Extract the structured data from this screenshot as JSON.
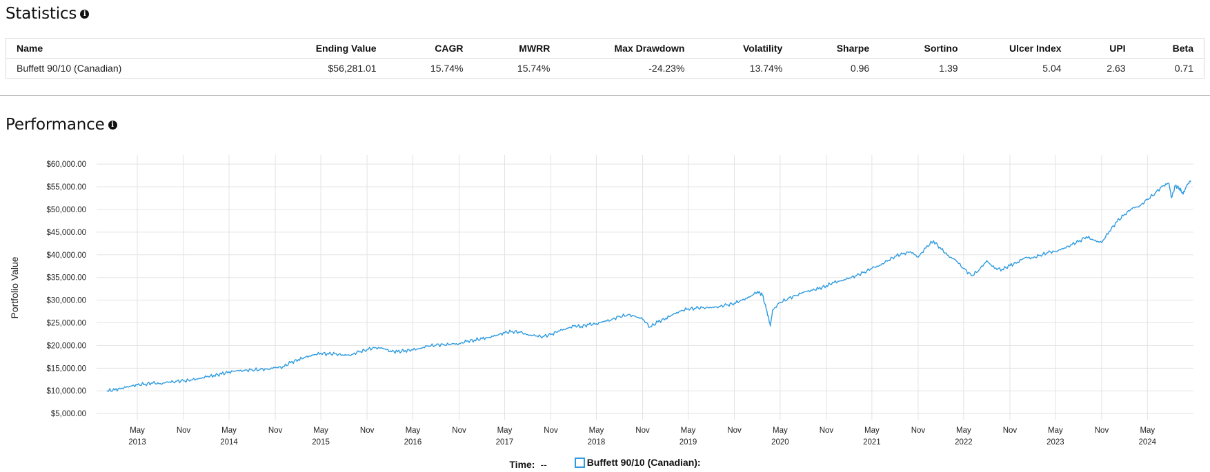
{
  "statistics": {
    "title": "Statistics",
    "columns": [
      "Name",
      "Ending Value",
      "CAGR",
      "MWRR",
      "Max Drawdown",
      "Volatility",
      "Sharpe",
      "Sortino",
      "Ulcer Index",
      "UPI",
      "Beta"
    ],
    "rows": [
      [
        "Buffett 90/10 (Canadian)",
        "$56,281.01",
        "15.74%",
        "15.74%",
        "-24.23%",
        "13.74%",
        "0.96",
        "1.39",
        "5.04",
        "2.63",
        "0.71"
      ]
    ]
  },
  "performance": {
    "title": "Performance",
    "legend": {
      "time_label": "Time:",
      "time_value": "--",
      "series_label": "Buffett 90/10 (Canadian):"
    }
  },
  "colors": {
    "line": "#2e9be0",
    "grid": "#e3e3e3",
    "text": "#212121"
  },
  "icons": [
    "info-icon",
    "info-icon"
  ],
  "chart_data": {
    "type": "line",
    "title": "",
    "xlabel": "",
    "ylabel": "Portfolio Value",
    "ylim": [
      3500,
      62000
    ],
    "xlim": [
      "2012-11-20",
      "2024-10-31"
    ],
    "grid": true,
    "y_ticks": [
      5000,
      10000,
      15000,
      20000,
      25000,
      30000,
      35000,
      40000,
      45000,
      50000,
      55000,
      60000
    ],
    "y_tick_labels": [
      "$5,000.00",
      "$10,000.00",
      "$15,000.00",
      "$20,000.00",
      "$25,000.00",
      "$30,000.00",
      "$35,000.00",
      "$40,000.00",
      "$45,000.00",
      "$50,000.00",
      "$55,000.00",
      "$60,000.00"
    ],
    "x_ticks": [
      {
        "date": "2013-05-01",
        "label": "May",
        "year": "2013"
      },
      {
        "date": "2013-11-01",
        "label": "Nov",
        "year": ""
      },
      {
        "date": "2014-05-01",
        "label": "May",
        "year": "2014"
      },
      {
        "date": "2014-11-01",
        "label": "Nov",
        "year": ""
      },
      {
        "date": "2015-05-01",
        "label": "May",
        "year": "2015"
      },
      {
        "date": "2015-11-01",
        "label": "Nov",
        "year": ""
      },
      {
        "date": "2016-05-01",
        "label": "May",
        "year": "2016"
      },
      {
        "date": "2016-11-01",
        "label": "Nov",
        "year": ""
      },
      {
        "date": "2017-05-01",
        "label": "May",
        "year": "2017"
      },
      {
        "date": "2017-11-01",
        "label": "Nov",
        "year": ""
      },
      {
        "date": "2018-05-01",
        "label": "May",
        "year": "2018"
      },
      {
        "date": "2018-11-01",
        "label": "Nov",
        "year": ""
      },
      {
        "date": "2019-05-01",
        "label": "May",
        "year": "2019"
      },
      {
        "date": "2019-11-01",
        "label": "Nov",
        "year": ""
      },
      {
        "date": "2020-05-01",
        "label": "May",
        "year": "2020"
      },
      {
        "date": "2020-11-01",
        "label": "Nov",
        "year": ""
      },
      {
        "date": "2021-05-01",
        "label": "May",
        "year": "2021"
      },
      {
        "date": "2021-11-01",
        "label": "Nov",
        "year": ""
      },
      {
        "date": "2022-05-01",
        "label": "May",
        "year": "2022"
      },
      {
        "date": "2022-11-01",
        "label": "Nov",
        "year": ""
      },
      {
        "date": "2023-05-01",
        "label": "May",
        "year": "2023"
      },
      {
        "date": "2023-11-01",
        "label": "Nov",
        "year": ""
      },
      {
        "date": "2024-05-01",
        "label": "May",
        "year": "2024"
      }
    ],
    "series": [
      {
        "name": "Buffett 90/10 (Canadian)",
        "color": "#2e9be0",
        "points": [
          [
            "2013-01-01",
            10000
          ],
          [
            "2013-02-01",
            10200
          ],
          [
            "2013-03-01",
            10600
          ],
          [
            "2013-04-01",
            11000
          ],
          [
            "2013-05-01",
            11300
          ],
          [
            "2013-06-01",
            11500
          ],
          [
            "2013-07-01",
            11700
          ],
          [
            "2013-08-01",
            11600
          ],
          [
            "2013-09-01",
            11900
          ],
          [
            "2013-10-01",
            12100
          ],
          [
            "2013-11-01",
            12200
          ],
          [
            "2013-12-01",
            12400
          ],
          [
            "2014-01-01",
            12700
          ],
          [
            "2014-02-01",
            13100
          ],
          [
            "2014-03-01",
            13400
          ],
          [
            "2014-04-01",
            13700
          ],
          [
            "2014-05-01",
            14200
          ],
          [
            "2014-06-01",
            14400
          ],
          [
            "2014-07-01",
            14500
          ],
          [
            "2014-08-01",
            14600
          ],
          [
            "2014-09-01",
            14700
          ],
          [
            "2014-10-01",
            14800
          ],
          [
            "2014-11-01",
            15100
          ],
          [
            "2014-12-01",
            15300
          ],
          [
            "2015-01-01",
            16200
          ],
          [
            "2015-02-01",
            16900
          ],
          [
            "2015-03-01",
            17400
          ],
          [
            "2015-04-01",
            17900
          ],
          [
            "2015-05-01",
            18300
          ],
          [
            "2015-06-01",
            18100
          ],
          [
            "2015-07-01",
            18200
          ],
          [
            "2015-08-01",
            17800
          ],
          [
            "2015-09-01",
            18000
          ],
          [
            "2015-10-01",
            18600
          ],
          [
            "2015-11-01",
            19100
          ],
          [
            "2015-12-01",
            19500
          ],
          [
            "2016-01-01",
            19400
          ],
          [
            "2016-02-01",
            18800
          ],
          [
            "2016-03-01",
            18600
          ],
          [
            "2016-04-01",
            18900
          ],
          [
            "2016-05-01",
            19000
          ],
          [
            "2016-06-01",
            19400
          ],
          [
            "2016-07-01",
            19900
          ],
          [
            "2016-08-01",
            20100
          ],
          [
            "2016-09-01",
            20200
          ],
          [
            "2016-10-01",
            20300
          ],
          [
            "2016-11-01",
            20400
          ],
          [
            "2016-12-01",
            20900
          ],
          [
            "2017-01-01",
            21200
          ],
          [
            "2017-02-01",
            21500
          ],
          [
            "2017-03-01",
            21800
          ],
          [
            "2017-04-01",
            22300
          ],
          [
            "2017-05-01",
            22800
          ],
          [
            "2017-06-01",
            23100
          ],
          [
            "2017-07-01",
            22900
          ],
          [
            "2017-08-01",
            22400
          ],
          [
            "2017-09-01",
            22100
          ],
          [
            "2017-10-01",
            22000
          ],
          [
            "2017-11-01",
            22400
          ],
          [
            "2017-12-01",
            23200
          ],
          [
            "2018-01-01",
            23700
          ],
          [
            "2018-02-01",
            24300
          ],
          [
            "2018-03-01",
            24200
          ],
          [
            "2018-04-01",
            24600
          ],
          [
            "2018-05-01",
            24800
          ],
          [
            "2018-06-01",
            25300
          ],
          [
            "2018-07-01",
            25700
          ],
          [
            "2018-08-01",
            26400
          ],
          [
            "2018-09-01",
            26700
          ],
          [
            "2018-10-01",
            26500
          ],
          [
            "2018-11-01",
            25800
          ],
          [
            "2018-12-01",
            24100
          ],
          [
            "2019-01-01",
            25200
          ],
          [
            "2019-02-01",
            26000
          ],
          [
            "2019-03-01",
            26800
          ],
          [
            "2019-04-01",
            27600
          ],
          [
            "2019-05-01",
            28100
          ],
          [
            "2019-06-01",
            28200
          ],
          [
            "2019-07-01",
            28400
          ],
          [
            "2019-08-01",
            28300
          ],
          [
            "2019-09-01",
            28600
          ],
          [
            "2019-10-01",
            28900
          ],
          [
            "2019-11-01",
            29300
          ],
          [
            "2019-12-01",
            30000
          ],
          [
            "2020-01-01",
            30700
          ],
          [
            "2020-02-01",
            31900
          ],
          [
            "2020-02-20",
            31200
          ],
          [
            "2020-03-10",
            27500
          ],
          [
            "2020-03-23",
            24300
          ],
          [
            "2020-04-01",
            27800
          ],
          [
            "2020-05-01",
            29500
          ],
          [
            "2020-06-01",
            30300
          ],
          [
            "2020-07-01",
            31000
          ],
          [
            "2020-08-01",
            31700
          ],
          [
            "2020-09-01",
            32200
          ],
          [
            "2020-10-01",
            32500
          ],
          [
            "2020-11-01",
            33200
          ],
          [
            "2020-12-01",
            33900
          ],
          [
            "2021-01-01",
            34300
          ],
          [
            "2021-02-01",
            34900
          ],
          [
            "2021-03-01",
            35400
          ],
          [
            "2021-04-01",
            36200
          ],
          [
            "2021-05-01",
            37000
          ],
          [
            "2021-06-01",
            37700
          ],
          [
            "2021-07-01",
            38600
          ],
          [
            "2021-08-01",
            39700
          ],
          [
            "2021-09-01",
            40200
          ],
          [
            "2021-10-01",
            40700
          ],
          [
            "2021-11-01",
            39500
          ],
          [
            "2021-12-01",
            41500
          ],
          [
            "2022-01-01",
            43100
          ],
          [
            "2022-02-01",
            41200
          ],
          [
            "2022-03-01",
            39800
          ],
          [
            "2022-04-01",
            38700
          ],
          [
            "2022-05-01",
            37000
          ],
          [
            "2022-06-01",
            35400
          ],
          [
            "2022-07-01",
            36600
          ],
          [
            "2022-08-01",
            38700
          ],
          [
            "2022-09-01",
            37000
          ],
          [
            "2022-10-01",
            36800
          ],
          [
            "2022-11-01",
            37600
          ],
          [
            "2022-12-01",
            38400
          ],
          [
            "2023-01-01",
            39400
          ],
          [
            "2023-02-01",
            39300
          ],
          [
            "2023-03-01",
            39900
          ],
          [
            "2023-04-01",
            40500
          ],
          [
            "2023-05-01",
            40800
          ],
          [
            "2023-06-01",
            41300
          ],
          [
            "2023-07-01",
            42200
          ],
          [
            "2023-08-01",
            42900
          ],
          [
            "2023-09-01",
            44000
          ],
          [
            "2023-10-01",
            43200
          ],
          [
            "2023-11-01",
            42700
          ],
          [
            "2023-12-01",
            45200
          ],
          [
            "2024-01-01",
            47300
          ],
          [
            "2024-02-01",
            49000
          ],
          [
            "2024-03-01",
            50200
          ],
          [
            "2024-04-01",
            50800
          ],
          [
            "2024-05-01",
            52200
          ],
          [
            "2024-06-01",
            53600
          ],
          [
            "2024-07-01",
            55200
          ],
          [
            "2024-07-25",
            55800
          ],
          [
            "2024-08-05",
            52600
          ],
          [
            "2024-08-20",
            55200
          ],
          [
            "2024-09-05",
            54700
          ],
          [
            "2024-09-20",
            53400
          ],
          [
            "2024-10-05",
            55400
          ],
          [
            "2024-10-20",
            56281
          ]
        ]
      }
    ]
  }
}
